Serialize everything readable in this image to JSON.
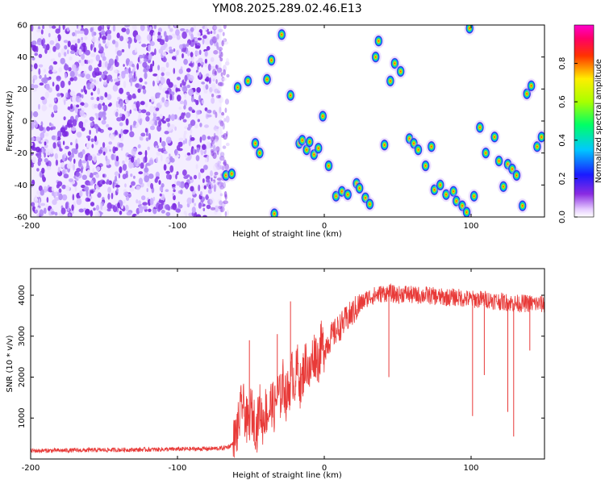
{
  "chart_data": [
    {
      "type": "heatmap",
      "title": "YM08.2025.289.02.46.E13",
      "xlabel": "Height of straight line (km)",
      "ylabel": "Frequency (Hz)",
      "xlim": [
        -200,
        150
      ],
      "ylim": [
        -60,
        60
      ],
      "xticks": [
        -200,
        -100,
        0,
        100
      ],
      "yticks": [
        -60,
        -40,
        -20,
        0,
        20,
        40,
        60
      ],
      "xtick_labels": [
        "-200",
        "-100",
        "0",
        "100"
      ],
      "ytick_labels": [
        "-60",
        "-40",
        "-20",
        "0",
        "20",
        "40",
        "60"
      ],
      "noise_region_x": [
        -200,
        -70
      ],
      "colorbar": {
        "label": "Normalized spectral amplitude",
        "range": [
          0,
          1
        ],
        "ticks": [
          0.0,
          0.2,
          0.4,
          0.6,
          0.8
        ],
        "tick_labels": [
          "0.0",
          "0.2",
          "0.4",
          "0.6",
          "0.8"
        ]
      },
      "blobs": [
        {
          "x": -67,
          "y": -34
        },
        {
          "x": -63,
          "y": -33
        },
        {
          "x": -59,
          "y": 21
        },
        {
          "x": -52,
          "y": 25
        },
        {
          "x": -47,
          "y": -14
        },
        {
          "x": -44,
          "y": -20
        },
        {
          "x": -39,
          "y": 26
        },
        {
          "x": -36,
          "y": 38
        },
        {
          "x": -34,
          "y": -58
        },
        {
          "x": -29,
          "y": 54
        },
        {
          "x": -23,
          "y": 16
        },
        {
          "x": -17,
          "y": -14
        },
        {
          "x": -15,
          "y": -12
        },
        {
          "x": -12,
          "y": -18
        },
        {
          "x": -10,
          "y": -13
        },
        {
          "x": -7,
          "y": -21
        },
        {
          "x": -4,
          "y": -17
        },
        {
          "x": -1,
          "y": 3
        },
        {
          "x": 3,
          "y": -28
        },
        {
          "x": 8,
          "y": -47
        },
        {
          "x": 12,
          "y": -44
        },
        {
          "x": 16,
          "y": -46
        },
        {
          "x": 22,
          "y": -39
        },
        {
          "x": 24,
          "y": -42
        },
        {
          "x": 28,
          "y": -48
        },
        {
          "x": 31,
          "y": -52
        },
        {
          "x": 35,
          "y": 40
        },
        {
          "x": 37,
          "y": 50
        },
        {
          "x": 41,
          "y": -15
        },
        {
          "x": 45,
          "y": 25
        },
        {
          "x": 48,
          "y": 36
        },
        {
          "x": 52,
          "y": 31
        },
        {
          "x": 58,
          "y": -11
        },
        {
          "x": 61,
          "y": -14
        },
        {
          "x": 64,
          "y": -18
        },
        {
          "x": 69,
          "y": -28
        },
        {
          "x": 73,
          "y": -16
        },
        {
          "x": 75,
          "y": -43
        },
        {
          "x": 79,
          "y": -40
        },
        {
          "x": 83,
          "y": -46
        },
        {
          "x": 88,
          "y": -44
        },
        {
          "x": 90,
          "y": -50
        },
        {
          "x": 94,
          "y": -53
        },
        {
          "x": 97,
          "y": -57
        },
        {
          "x": 99,
          "y": 58
        },
        {
          "x": 102,
          "y": -47
        },
        {
          "x": 106,
          "y": -4
        },
        {
          "x": 110,
          "y": -20
        },
        {
          "x": 116,
          "y": -10
        },
        {
          "x": 119,
          "y": -25
        },
        {
          "x": 122,
          "y": -41
        },
        {
          "x": 125,
          "y": -27
        },
        {
          "x": 128,
          "y": -30
        },
        {
          "x": 131,
          "y": -34
        },
        {
          "x": 135,
          "y": -53
        },
        {
          "x": 138,
          "y": 17
        },
        {
          "x": 141,
          "y": 22
        },
        {
          "x": 145,
          "y": -16
        },
        {
          "x": 148,
          "y": -10
        }
      ]
    },
    {
      "type": "line",
      "xlabel": "Height of straight line (km)",
      "ylabel": "SNR (10 * v/v)",
      "xlim": [
        -200,
        150
      ],
      "ylim": [
        0,
        4650
      ],
      "xticks": [
        -200,
        -100,
        0,
        100
      ],
      "yticks": [
        1000,
        2000,
        3000,
        4000
      ],
      "xtick_labels": [
        "-200",
        "-100",
        "0",
        "100"
      ],
      "ytick_labels": [
        "1000",
        "2000",
        "3000",
        "4000"
      ],
      "series": [
        {
          "name": "SNR",
          "color": "#e83a38",
          "x": [
            -200,
            -150,
            -120,
            -100,
            -80,
            -70,
            -65,
            -62,
            -60,
            -58,
            -56,
            -54,
            -52,
            -50,
            -48,
            -46,
            -44,
            -42,
            -40,
            -38,
            -36,
            -34,
            -32,
            -30,
            -28,
            -26,
            -24,
            -22,
            -20,
            -18,
            -16,
            -14,
            -12,
            -10,
            -8,
            -6,
            -4,
            -2,
            0,
            5,
            10,
            15,
            20,
            25,
            30,
            35,
            40,
            45,
            50,
            55,
            60,
            70,
            80,
            90,
            100,
            110,
            120,
            130,
            140,
            150
          ],
          "values": [
            200,
            220,
            230,
            240,
            250,
            260,
            300,
            380,
            600,
            900,
            1400,
            1100,
            800,
            1200,
            1000,
            700,
            1300,
            900,
            1200,
            1100,
            1400,
            1200,
            1600,
            1500,
            1900,
            1500,
            1700,
            2100,
            1900,
            2300,
            1700,
            2200,
            2400,
            2000,
            2500,
            2600,
            2400,
            2800,
            2700,
            3000,
            3200,
            3400,
            3600,
            3800,
            3950,
            4000,
            4050,
            4050,
            4000,
            4050,
            4000,
            4000,
            3950,
            3950,
            3900,
            3900,
            3850,
            3800,
            3800,
            3780
          ],
          "spikes": [
            {
              "x": -51,
              "value": 2900
            },
            {
              "x": -32,
              "value": 3050
            },
            {
              "x": -23,
              "value": 3850
            },
            {
              "x": 44,
              "value": 2000
            },
            {
              "x": 101,
              "value": 1050
            },
            {
              "x": 109,
              "value": 2050
            },
            {
              "x": 125,
              "value": 1150
            },
            {
              "x": 129,
              "value": 550
            },
            {
              "x": 140,
              "value": 2650
            }
          ]
        }
      ]
    }
  ]
}
